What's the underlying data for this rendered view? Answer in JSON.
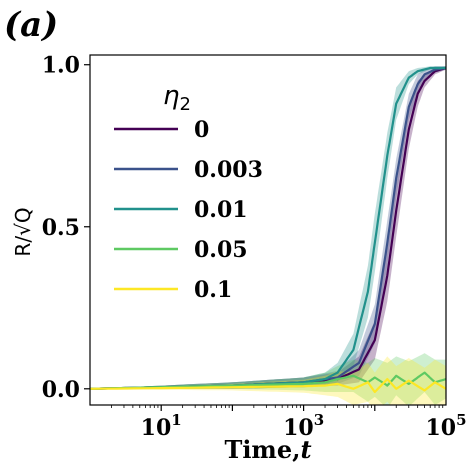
{
  "chart_data": {
    "type": "line",
    "panel_label": "(a)",
    "xlabel": "Time,",
    "xlabel_symbol": "t",
    "ylabel": "R/√Q",
    "x_scale": "log",
    "xlim": [
      1,
      100000
    ],
    "ylim": [
      -0.05,
      1.03
    ],
    "x_ticks": [
      {
        "value": 10,
        "base": "10",
        "exp": "1"
      },
      {
        "value": 1000,
        "base": "10",
        "exp": "3"
      },
      {
        "value": 100000,
        "base": "10",
        "exp": "5"
      }
    ],
    "y_ticks": [
      {
        "value": 0.0,
        "label": "0.0"
      },
      {
        "value": 0.5,
        "label": "0.5"
      },
      {
        "value": 1.0,
        "label": "1.0"
      }
    ],
    "legend": {
      "title": "η",
      "title_sub": "2",
      "placement": "upper-left"
    },
    "series": [
      {
        "name": "0",
        "color": "#440154",
        "band_color": "#440154",
        "x": [
          1,
          10,
          100,
          1000,
          3000,
          6000,
          10000,
          15000,
          20000,
          30000,
          40000,
          50000,
          70000,
          100000
        ],
        "y": [
          0.0,
          0.005,
          0.01,
          0.02,
          0.03,
          0.06,
          0.15,
          0.35,
          0.55,
          0.8,
          0.91,
          0.95,
          0.98,
          0.99
        ],
        "band": [
          0.0,
          0.005,
          0.01,
          0.015,
          0.02,
          0.04,
          0.06,
          0.08,
          0.08,
          0.06,
          0.04,
          0.02,
          0.01,
          0.005
        ]
      },
      {
        "name": "0.003",
        "color": "#3b528b",
        "band_color": "#3b528b",
        "x": [
          1,
          10,
          100,
          1000,
          3000,
          6000,
          10000,
          15000,
          20000,
          30000,
          40000,
          50000,
          70000,
          100000
        ],
        "y": [
          0.0,
          0.005,
          0.01,
          0.02,
          0.035,
          0.08,
          0.2,
          0.45,
          0.65,
          0.87,
          0.94,
          0.97,
          0.985,
          0.99
        ],
        "band": [
          0.0,
          0.005,
          0.01,
          0.015,
          0.02,
          0.04,
          0.06,
          0.07,
          0.06,
          0.04,
          0.03,
          0.015,
          0.01,
          0.005
        ]
      },
      {
        "name": "0.01",
        "color": "#21918c",
        "band_color": "#21918c",
        "x": [
          1,
          10,
          100,
          1000,
          2000,
          3000,
          5000,
          8000,
          10000,
          15000,
          20000,
          30000,
          40000,
          60000,
          100000
        ],
        "y": [
          0.0,
          0.005,
          0.01,
          0.02,
          0.03,
          0.05,
          0.12,
          0.3,
          0.45,
          0.72,
          0.88,
          0.96,
          0.98,
          0.99,
          0.99
        ],
        "band": [
          0.0,
          0.005,
          0.01,
          0.015,
          0.02,
          0.03,
          0.05,
          0.08,
          0.09,
          0.07,
          0.05,
          0.02,
          0.01,
          0.005,
          0.005
        ]
      },
      {
        "name": "0.05",
        "color": "#5ec962",
        "band_color": "#5ec962",
        "x": [
          1,
          10,
          100,
          1000,
          2000,
          3000,
          5000,
          8000,
          10000,
          15000,
          20000,
          30000,
          50000,
          70000,
          100000
        ],
        "y": [
          0.0,
          0.005,
          0.01,
          0.015,
          0.02,
          0.03,
          0.04,
          0.02,
          0.035,
          0.01,
          0.04,
          0.015,
          0.05,
          0.02,
          0.03
        ],
        "band": [
          0.0,
          0.005,
          0.01,
          0.02,
          0.03,
          0.04,
          0.05,
          0.06,
          0.06,
          0.07,
          0.06,
          0.07,
          0.06,
          0.07,
          0.06
        ]
      },
      {
        "name": "0.1",
        "color": "#fde725",
        "band_color": "#fde725",
        "x": [
          1,
          10,
          100,
          1000,
          2000,
          3000,
          5000,
          8000,
          10000,
          15000,
          20000,
          30000,
          50000,
          70000,
          100000
        ],
        "y": [
          0.0,
          0.002,
          0.005,
          0.008,
          0.01,
          0.015,
          0.0,
          0.02,
          -0.01,
          0.03,
          0.0,
          0.025,
          -0.005,
          0.02,
          0.0
        ],
        "band": [
          0.0,
          0.005,
          0.01,
          0.02,
          0.03,
          0.04,
          0.05,
          0.06,
          0.06,
          0.07,
          0.07,
          0.07,
          0.07,
          0.07,
          0.07
        ]
      }
    ]
  }
}
